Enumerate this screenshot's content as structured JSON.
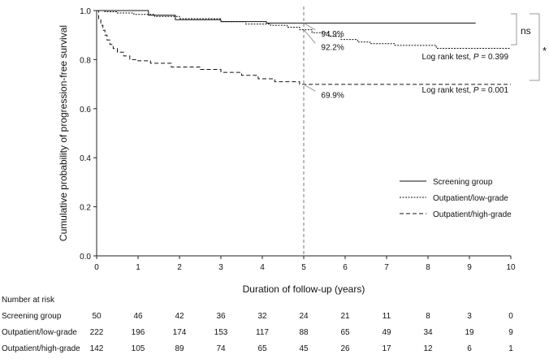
{
  "chart_data": {
    "type": "line",
    "subtype": "kaplan-meier",
    "ylabel": "Cumulative probability of progression-free survival",
    "xlabel": "Duration of follow-up (years)",
    "xlim": [
      0,
      10
    ],
    "ylim": [
      0.0,
      1.0
    ],
    "xticks": [
      0,
      1,
      2,
      3,
      4,
      5,
      6,
      7,
      8,
      9,
      10
    ],
    "yticks": [
      0.0,
      0.2,
      0.4,
      0.6,
      0.8,
      1.0
    ],
    "xtick_labels": [
      "0",
      "1",
      "2",
      "3",
      "4",
      "5",
      "6",
      "7",
      "8",
      "9",
      "10"
    ],
    "ytick_labels": [
      "0.0",
      "0.2",
      "0.4",
      "0.6",
      "0.8",
      "1.0"
    ],
    "grid": false,
    "legend_position": "right",
    "reference_line_x": 5,
    "series": [
      {
        "name": "Screening group",
        "style": "solid",
        "x": [
          0,
          1.25,
          1.25,
          1.9,
          1.9,
          3.0,
          3.0,
          4.1,
          4.1,
          9.15
        ],
        "y": [
          1.0,
          1.0,
          0.981,
          0.981,
          0.963,
          0.963,
          0.955,
          0.955,
          0.949,
          0.949
        ]
      },
      {
        "name": "Outpatient/low-grade",
        "style": "dotted",
        "x": [
          0,
          0.2,
          0.2,
          0.5,
          0.5,
          0.9,
          0.9,
          1.4,
          1.4,
          2.0,
          2.0,
          3.0,
          3.0,
          3.6,
          3.6,
          4.2,
          4.2,
          4.6,
          4.6,
          4.9,
          4.9,
          5.2,
          5.2,
          5.6,
          5.6,
          5.9,
          5.9,
          6.3,
          6.3,
          6.6,
          6.6,
          7.2,
          7.2,
          8.2,
          8.2,
          10.0
        ],
        "y": [
          1.0,
          1.0,
          0.995,
          0.995,
          0.99,
          0.99,
          0.984,
          0.984,
          0.976,
          0.976,
          0.967,
          0.967,
          0.955,
          0.955,
          0.945,
          0.945,
          0.94,
          0.94,
          0.932,
          0.932,
          0.922,
          0.922,
          0.91,
          0.91,
          0.895,
          0.895,
          0.882,
          0.882,
          0.872,
          0.872,
          0.865,
          0.865,
          0.858,
          0.858,
          0.846,
          0.846
        ]
      },
      {
        "name": "Outpatient/high-grade",
        "style": "dashed",
        "x": [
          0,
          0.05,
          0.05,
          0.1,
          0.1,
          0.15,
          0.15,
          0.2,
          0.2,
          0.25,
          0.25,
          0.32,
          0.32,
          0.4,
          0.4,
          0.5,
          0.5,
          0.65,
          0.65,
          0.8,
          0.8,
          1.0,
          1.0,
          1.3,
          1.3,
          1.8,
          1.8,
          2.5,
          2.5,
          3.0,
          3.0,
          3.5,
          3.5,
          3.9,
          3.9,
          4.3,
          4.3,
          4.9,
          4.9,
          10.0
        ],
        "y": [
          1.0,
          1.0,
          0.965,
          0.965,
          0.94,
          0.94,
          0.92,
          0.92,
          0.9,
          0.9,
          0.88,
          0.88,
          0.862,
          0.862,
          0.845,
          0.845,
          0.83,
          0.83,
          0.815,
          0.815,
          0.8,
          0.8,
          0.795,
          0.795,
          0.785,
          0.785,
          0.77,
          0.77,
          0.76,
          0.76,
          0.748,
          0.748,
          0.736,
          0.736,
          0.722,
          0.722,
          0.71,
          0.71,
          0.699,
          0.699
        ]
      }
    ],
    "annotations": [
      {
        "text": "94.9%",
        "x": 5,
        "y": 0.949,
        "label_x": 5.42,
        "label_y": 0.908
      },
      {
        "text": "92.2%",
        "x": 5,
        "y": 0.922,
        "label_x": 5.42,
        "label_y": 0.853
      },
      {
        "text": "69.9%",
        "x": 5,
        "y": 0.699,
        "label_x": 5.42,
        "label_y": 0.658
      }
    ],
    "comparisons": [
      {
        "label": "ns",
        "stat_prefix": "Log rank test, ",
        "p_symbol": "P",
        "p_value": " = 0.399",
        "between": [
          "Screening group",
          "Outpatient/low-grade"
        ]
      },
      {
        "label": "*",
        "stat_prefix": "Log rank test, ",
        "p_symbol": "P",
        "p_value": " = 0.001",
        "between": [
          "Screening group",
          "Outpatient/high-grade"
        ]
      }
    ]
  },
  "risk_table": {
    "title": "Number at risk",
    "times": [
      0,
      1,
      2,
      3,
      4,
      5,
      6,
      7,
      8,
      9,
      10
    ],
    "rows": [
      {
        "label": "Screening group",
        "values": [
          "50",
          "46",
          "42",
          "36",
          "32",
          "24",
          "21",
          "11",
          "8",
          "3",
          "0"
        ]
      },
      {
        "label": "Outpatient/low-grade",
        "values": [
          "222",
          "196",
          "174",
          "153",
          "117",
          "88",
          "65",
          "49",
          "34",
          "19",
          "9"
        ]
      },
      {
        "label": "Outpatient/high-grade",
        "values": [
          "142",
          "105",
          "89",
          "74",
          "65",
          "45",
          "26",
          "17",
          "12",
          "6",
          "1"
        ]
      }
    ]
  }
}
